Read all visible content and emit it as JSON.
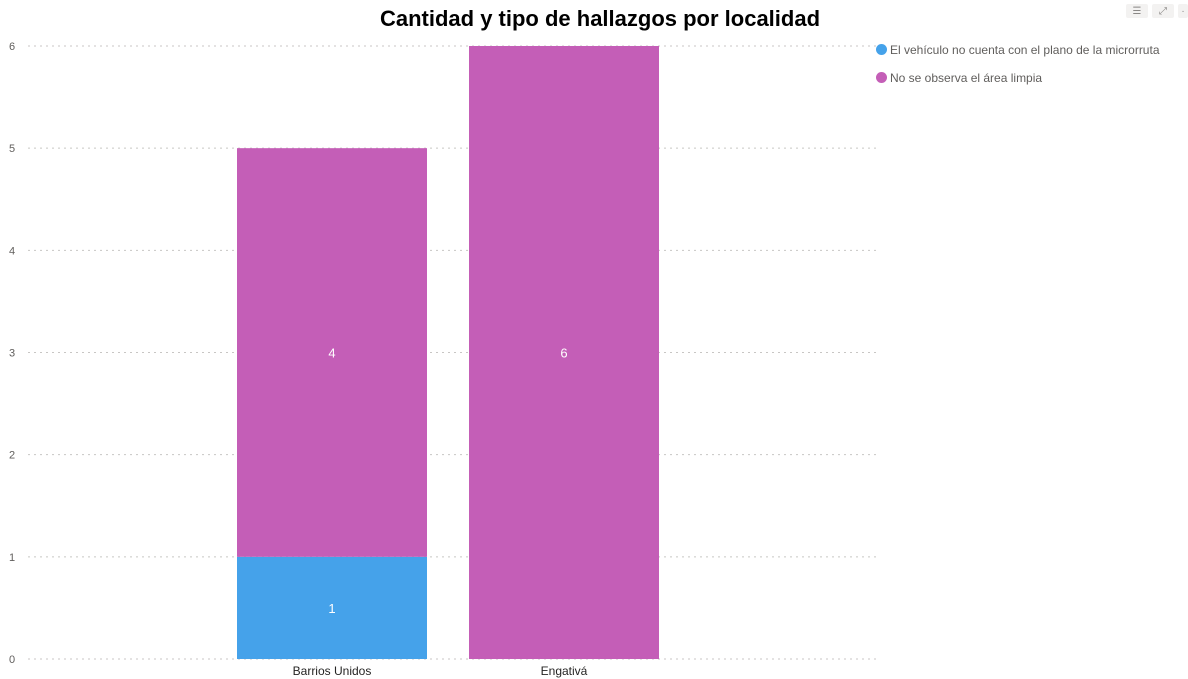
{
  "toolbar": {
    "filter_icon": "filter-icon",
    "focus_icon": "focus-mode-icon",
    "more_icon": "more-options-icon"
  },
  "chart_data": {
    "type": "bar",
    "stacked": true,
    "title": "Cantidad y tipo de hallazgos por localidad",
    "xlabel": "",
    "ylabel": "",
    "categories": [
      "Barrios Unidos",
      "Engativá"
    ],
    "series": [
      {
        "name": "El vehículo no cuenta con el plano de la microrruta",
        "color": "#45a2ea",
        "values": [
          1,
          0
        ]
      },
      {
        "name": "No se observa el área limpia",
        "color": "#c45eb7",
        "values": [
          4,
          6
        ]
      }
    ],
    "ylim": [
      0,
      6
    ],
    "yticks": [
      0,
      1,
      2,
      3,
      4,
      5,
      6
    ],
    "grid": true,
    "legend_position": "top-right"
  }
}
